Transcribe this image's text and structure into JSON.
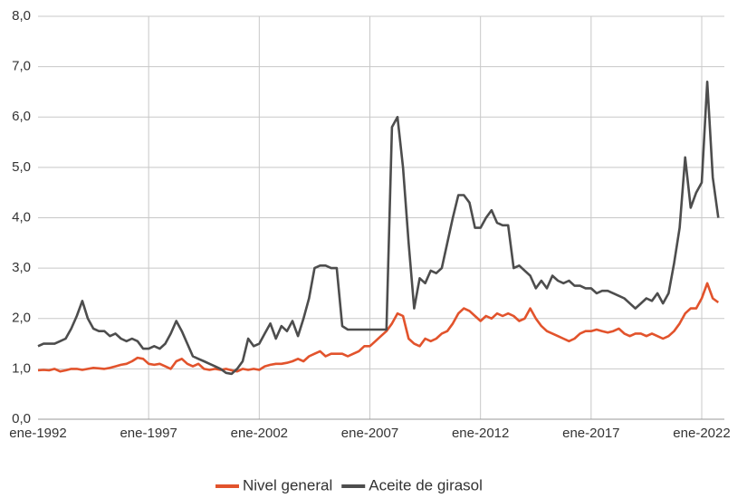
{
  "chart_data": {
    "type": "line",
    "categories": [
      "ene-1992",
      null,
      null,
      null,
      null,
      null,
      null,
      null,
      null,
      null,
      null,
      null,
      null,
      null,
      null,
      null,
      null,
      null,
      null,
      null,
      "ene-1997",
      null,
      null,
      null,
      null,
      null,
      null,
      null,
      null,
      null,
      null,
      null,
      null,
      null,
      null,
      null,
      null,
      null,
      null,
      null,
      "ene-2002",
      null,
      null,
      null,
      null,
      null,
      null,
      null,
      null,
      null,
      null,
      null,
      null,
      null,
      null,
      null,
      null,
      null,
      null,
      null,
      "ene-2007",
      null,
      null,
      null,
      null,
      null,
      null,
      null,
      null,
      null,
      null,
      null,
      null,
      null,
      null,
      null,
      null,
      null,
      null,
      null,
      "ene-2012",
      null,
      null,
      null,
      null,
      null,
      null,
      null,
      null,
      null,
      null,
      null,
      null,
      null,
      null,
      null,
      null,
      null,
      null,
      null,
      "ene-2017",
      null,
      null,
      null,
      null,
      null,
      null,
      null,
      null,
      null,
      null,
      null,
      null,
      null,
      null,
      null,
      null,
      null,
      null,
      null,
      "ene-2022",
      null,
      null,
      null
    ],
    "series": [
      {
        "name": "Nivel general",
        "color": "#e2532c",
        "values": [
          0.97,
          0.98,
          0.97,
          1.0,
          0.95,
          0.97,
          1.0,
          1.0,
          0.98,
          1.0,
          1.02,
          1.01,
          1.0,
          1.02,
          1.05,
          1.08,
          1.1,
          1.15,
          1.22,
          1.2,
          1.1,
          1.08,
          1.1,
          1.05,
          1.0,
          1.15,
          1.2,
          1.1,
          1.05,
          1.1,
          1.0,
          0.98,
          1.0,
          0.98,
          1.0,
          0.97,
          0.95,
          1.0,
          0.98,
          1.0,
          0.98,
          1.05,
          1.08,
          1.1,
          1.1,
          1.12,
          1.15,
          1.2,
          1.15,
          1.25,
          1.3,
          1.35,
          1.25,
          1.3,
          1.3,
          1.3,
          1.25,
          1.3,
          1.35,
          1.45,
          1.45,
          1.55,
          1.65,
          1.75,
          1.9,
          2.1,
          2.05,
          1.6,
          1.5,
          1.45,
          1.6,
          1.55,
          1.6,
          1.7,
          1.75,
          1.9,
          2.1,
          2.2,
          2.15,
          2.05,
          1.95,
          2.05,
          2.0,
          2.1,
          2.05,
          2.1,
          2.05,
          1.95,
          2.0,
          2.2,
          2.0,
          1.85,
          1.75,
          1.7,
          1.65,
          1.6,
          1.55,
          1.6,
          1.7,
          1.75,
          1.75,
          1.78,
          1.75,
          1.72,
          1.75,
          1.8,
          1.7,
          1.65,
          1.7,
          1.7,
          1.65,
          1.7,
          1.65,
          1.6,
          1.65,
          1.75,
          1.9,
          2.1,
          2.2,
          2.2,
          2.4,
          2.7,
          2.4,
          2.32
        ]
      },
      {
        "name": "Aceite de girasol",
        "color": "#4d4d4d",
        "values": [
          1.45,
          1.5,
          1.5,
          1.5,
          1.55,
          1.6,
          1.8,
          2.05,
          2.35,
          2.0,
          1.8,
          1.75,
          1.75,
          1.65,
          1.7,
          1.6,
          1.55,
          1.6,
          1.55,
          1.4,
          1.4,
          1.45,
          1.4,
          1.5,
          1.7,
          1.95,
          1.75,
          1.5,
          1.25,
          1.2,
          1.15,
          1.1,
          1.05,
          1.0,
          0.92,
          0.9,
          1.0,
          1.15,
          1.6,
          1.45,
          1.5,
          1.7,
          1.9,
          1.6,
          1.85,
          1.75,
          1.95,
          1.65,
          2.0,
          2.4,
          3.0,
          3.05,
          3.05,
          3.0,
          3.0,
          1.85,
          1.78,
          1.78,
          1.78,
          1.78,
          1.78,
          1.78,
          1.78,
          1.78,
          5.8,
          6.0,
          5.0,
          3.5,
          2.2,
          2.8,
          2.7,
          2.95,
          2.9,
          3.0,
          3.5,
          4.0,
          4.45,
          4.45,
          4.3,
          3.8,
          3.8,
          4.0,
          4.15,
          3.9,
          3.85,
          3.85,
          3.0,
          3.05,
          2.95,
          2.85,
          2.6,
          2.75,
          2.6,
          2.85,
          2.75,
          2.7,
          2.75,
          2.65,
          2.65,
          2.6,
          2.6,
          2.5,
          2.55,
          2.55,
          2.5,
          2.45,
          2.4,
          2.3,
          2.2,
          2.3,
          2.4,
          2.35,
          2.5,
          2.3,
          2.5,
          3.1,
          3.8,
          5.2,
          4.2,
          4.5,
          4.7,
          6.7,
          4.8,
          4.0
        ]
      }
    ],
    "ylim": [
      0,
      8
    ],
    "yticks": [
      {
        "value": 0,
        "label": "0,0"
      },
      {
        "value": 1,
        "label": "1,0"
      },
      {
        "value": 2,
        "label": "2,0"
      },
      {
        "value": 3,
        "label": "3,0"
      },
      {
        "value": 4,
        "label": "4,0"
      },
      {
        "value": 5,
        "label": "5,0"
      },
      {
        "value": 6,
        "label": "6,0"
      },
      {
        "value": 7,
        "label": "7,0"
      },
      {
        "value": 8,
        "label": "8,0"
      }
    ],
    "grid": true,
    "legend": "bottom"
  }
}
